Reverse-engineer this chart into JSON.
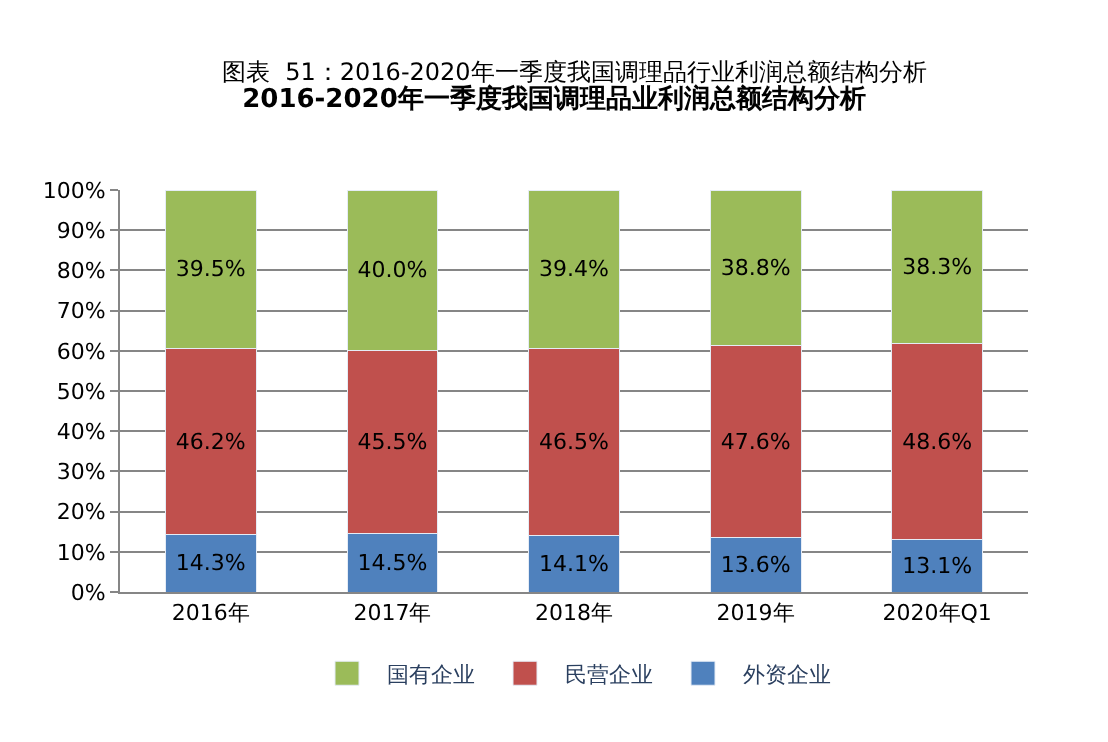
{
  "chart_data": {
    "type": "bar",
    "title": "2016-2020年一季度我国调理品业利润总额结构分析",
    "annotations": [
      "图表  51：2016-2020年一季度我国调理品行业利润总额结构分析"
    ],
    "categories": [
      "2016年",
      "2017年",
      "2018年",
      "2019年",
      "2020年Q1"
    ],
    "stacked": true,
    "series": [
      {
        "name": "外资企业",
        "color": "#4f81bd",
        "values": [
          14.3,
          14.5,
          14.1,
          13.6,
          13.1
        ],
        "value_labels": [
          "14.3%",
          "14.5%",
          "14.1%",
          "13.6%",
          "13.1%"
        ]
      },
      {
        "name": "民营企业",
        "color": "#c0504d",
        "values": [
          46.2,
          45.5,
          46.5,
          47.6,
          48.6
        ],
        "value_labels": [
          "46.2%",
          "45.5%",
          "46.5%",
          "47.6%",
          "48.6%"
        ]
      },
      {
        "name": "国有企业",
        "color": "#9bbb59",
        "values": [
          39.5,
          40.0,
          39.4,
          38.8,
          38.3
        ],
        "value_labels": [
          "39.5%",
          "40.0%",
          "39.4%",
          "38.8%",
          "38.3%"
        ]
      }
    ],
    "ylim": [
      0,
      100
    ],
    "yticks": [
      {
        "value": 0,
        "label": "0%"
      },
      {
        "value": 10,
        "label": "10%"
      },
      {
        "value": 20,
        "label": "20%"
      },
      {
        "value": 30,
        "label": "30%"
      },
      {
        "value": 40,
        "label": "40%"
      },
      {
        "value": 50,
        "label": "50%"
      },
      {
        "value": 60,
        "label": "60%"
      },
      {
        "value": 70,
        "label": "70%"
      },
      {
        "value": 80,
        "label": "80%"
      },
      {
        "value": 90,
        "label": "90%"
      },
      {
        "value": 100,
        "label": "100%"
      }
    ],
    "grid": "y",
    "legend": "bottom"
  }
}
